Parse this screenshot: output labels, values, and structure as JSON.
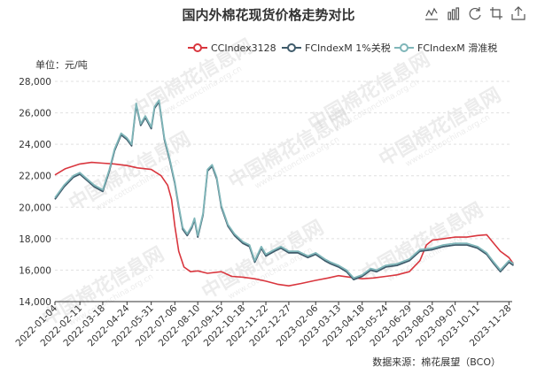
{
  "chart_data": {
    "type": "line",
    "title": "国内外棉花现货价格走势对比",
    "unit_label": "单位：元/吨",
    "source": "数据来源：棉花展望（BCO）",
    "watermark": "中国棉花信息网",
    "watermark_url": "www.cottonchina.org.cn",
    "ylim": [
      14000,
      28000
    ],
    "yticks": [
      14000,
      16000,
      18000,
      20000,
      22000,
      24000,
      26000,
      28000
    ],
    "ytick_labels": [
      "14,000",
      "16,000",
      "18,000",
      "20,000",
      "22,000",
      "24,000",
      "26,000",
      "28,000"
    ],
    "xticks": [
      "2022-01-04",
      "2022-02-11",
      "2022-03-18",
      "2022-04-24",
      "2022-05-31",
      "2022-07-06",
      "2022-08-10",
      "2022-09-15",
      "2022-10-18",
      "2022-11-22",
      "2022-12-27",
      "2023-02-06",
      "2023-03-13",
      "2023-04-18",
      "2023-05-24",
      "2023-06-29",
      "2023-08-03",
      "2023-09-07",
      "2023-10-11",
      "2023-11-28"
    ],
    "grid": true,
    "legend_position": "top-right",
    "series": [
      {
        "name": "CCIndex3128",
        "color": "#d9363e",
        "points": [
          [
            "2022-01-04",
            22050
          ],
          [
            "2022-01-20",
            22450
          ],
          [
            "2022-02-11",
            22750
          ],
          [
            "2022-03-01",
            22850
          ],
          [
            "2022-03-18",
            22800
          ],
          [
            "2022-04-05",
            22750
          ],
          [
            "2022-04-24",
            22650
          ],
          [
            "2022-05-10",
            22500
          ],
          [
            "2022-05-31",
            22400
          ],
          [
            "2022-06-15",
            22000
          ],
          [
            "2022-06-25",
            21400
          ],
          [
            "2022-07-01",
            20500
          ],
          [
            "2022-07-06",
            18800
          ],
          [
            "2022-07-12",
            17200
          ],
          [
            "2022-07-20",
            16200
          ],
          [
            "2022-07-30",
            15900
          ],
          [
            "2022-08-10",
            15950
          ],
          [
            "2022-08-25",
            15800
          ],
          [
            "2022-09-15",
            15900
          ],
          [
            "2022-10-01",
            15600
          ],
          [
            "2022-10-18",
            15550
          ],
          [
            "2022-11-05",
            15450
          ],
          [
            "2022-11-22",
            15300
          ],
          [
            "2022-12-10",
            15100
          ],
          [
            "2022-12-27",
            15000
          ],
          [
            "2023-01-15",
            15150
          ],
          [
            "2023-02-06",
            15350
          ],
          [
            "2023-02-25",
            15500
          ],
          [
            "2023-03-13",
            15650
          ],
          [
            "2023-03-30",
            15550
          ],
          [
            "2023-04-18",
            15450
          ],
          [
            "2023-05-05",
            15500
          ],
          [
            "2023-05-24",
            15600
          ],
          [
            "2023-06-10",
            15700
          ],
          [
            "2023-06-29",
            15900
          ],
          [
            "2023-07-15",
            16600
          ],
          [
            "2023-07-25",
            17600
          ],
          [
            "2023-08-03",
            17900
          ],
          [
            "2023-08-20",
            18000
          ],
          [
            "2023-09-07",
            18100
          ],
          [
            "2023-09-25",
            18100
          ],
          [
            "2023-10-11",
            18200
          ],
          [
            "2023-10-25",
            18250
          ],
          [
            "2023-11-05",
            17700
          ],
          [
            "2023-11-15",
            17200
          ],
          [
            "2023-11-28",
            16800
          ],
          [
            "2023-12-05",
            16400
          ]
        ]
      },
      {
        "name": "FCIndexM 1%关税",
        "color": "#3f5b6b",
        "points": [
          [
            "2022-01-04",
            20500
          ],
          [
            "2022-01-18",
            21300
          ],
          [
            "2022-02-01",
            21900
          ],
          [
            "2022-02-11",
            22100
          ],
          [
            "2022-02-22",
            21700
          ],
          [
            "2022-03-05",
            21300
          ],
          [
            "2022-03-18",
            21000
          ],
          [
            "2022-03-28",
            22300
          ],
          [
            "2022-04-05",
            23600
          ],
          [
            "2022-04-15",
            24600
          ],
          [
            "2022-04-24",
            24300
          ],
          [
            "2022-05-01",
            23900
          ],
          [
            "2022-05-08",
            26500
          ],
          [
            "2022-05-15",
            25200
          ],
          [
            "2022-05-22",
            25700
          ],
          [
            "2022-05-31",
            25000
          ],
          [
            "2022-06-05",
            26300
          ],
          [
            "2022-06-12",
            26700
          ],
          [
            "2022-06-20",
            24300
          ],
          [
            "2022-06-28",
            23000
          ],
          [
            "2022-07-06",
            21500
          ],
          [
            "2022-07-12",
            20000
          ],
          [
            "2022-07-18",
            18600
          ],
          [
            "2022-07-25",
            18200
          ],
          [
            "2022-08-01",
            18700
          ],
          [
            "2022-08-05",
            19200
          ],
          [
            "2022-08-10",
            18100
          ],
          [
            "2022-08-18",
            19500
          ],
          [
            "2022-08-25",
            22300
          ],
          [
            "2022-09-01",
            22600
          ],
          [
            "2022-09-08",
            21800
          ],
          [
            "2022-09-15",
            20000
          ],
          [
            "2022-09-25",
            18800
          ],
          [
            "2022-10-05",
            18200
          ],
          [
            "2022-10-18",
            17700
          ],
          [
            "2022-10-28",
            17500
          ],
          [
            "2022-11-05",
            16500
          ],
          [
            "2022-11-15",
            17400
          ],
          [
            "2022-11-22",
            16900
          ],
          [
            "2022-12-05",
            17200
          ],
          [
            "2022-12-15",
            17400
          ],
          [
            "2022-12-27",
            17100
          ],
          [
            "2023-01-10",
            17100
          ],
          [
            "2023-01-25",
            16800
          ],
          [
            "2023-02-06",
            17000
          ],
          [
            "2023-02-20",
            16600
          ],
          [
            "2023-03-01",
            16400
          ],
          [
            "2023-03-13",
            16200
          ],
          [
            "2023-03-25",
            15900
          ],
          [
            "2023-04-05",
            15400
          ],
          [
            "2023-04-18",
            15600
          ],
          [
            "2023-05-01",
            16000
          ],
          [
            "2023-05-10",
            15900
          ],
          [
            "2023-05-24",
            16200
          ],
          [
            "2023-06-10",
            16300
          ],
          [
            "2023-06-29",
            16600
          ],
          [
            "2023-07-15",
            17200
          ],
          [
            "2023-08-03",
            17300
          ],
          [
            "2023-08-20",
            17500
          ],
          [
            "2023-09-07",
            17600
          ],
          [
            "2023-09-25",
            17600
          ],
          [
            "2023-10-11",
            17400
          ],
          [
            "2023-10-25",
            17000
          ],
          [
            "2023-11-05",
            16400
          ],
          [
            "2023-11-15",
            15900
          ],
          [
            "2023-11-28",
            16500
          ],
          [
            "2023-12-05",
            16300
          ]
        ]
      },
      {
        "name": "FCIndexM 滑准税",
        "color": "#7fb6b9",
        "points": [
          [
            "2022-01-04",
            20600
          ],
          [
            "2022-01-18",
            21400
          ],
          [
            "2022-02-01",
            22000
          ],
          [
            "2022-02-11",
            22200
          ],
          [
            "2022-02-22",
            21800
          ],
          [
            "2022-03-05",
            21400
          ],
          [
            "2022-03-18",
            21100
          ],
          [
            "2022-03-28",
            22400
          ],
          [
            "2022-04-05",
            23700
          ],
          [
            "2022-04-15",
            24700
          ],
          [
            "2022-04-24",
            24400
          ],
          [
            "2022-05-01",
            24000
          ],
          [
            "2022-05-08",
            26600
          ],
          [
            "2022-05-15",
            25300
          ],
          [
            "2022-05-22",
            25800
          ],
          [
            "2022-05-31",
            25100
          ],
          [
            "2022-06-05",
            26400
          ],
          [
            "2022-06-12",
            26800
          ],
          [
            "2022-06-20",
            24400
          ],
          [
            "2022-06-28",
            23100
          ],
          [
            "2022-07-06",
            21600
          ],
          [
            "2022-07-12",
            20100
          ],
          [
            "2022-07-18",
            18700
          ],
          [
            "2022-07-25",
            18300
          ],
          [
            "2022-08-01",
            18800
          ],
          [
            "2022-08-05",
            19300
          ],
          [
            "2022-08-10",
            18200
          ],
          [
            "2022-08-18",
            19600
          ],
          [
            "2022-08-25",
            22400
          ],
          [
            "2022-09-01",
            22700
          ],
          [
            "2022-09-08",
            21900
          ],
          [
            "2022-09-15",
            20100
          ],
          [
            "2022-09-25",
            18900
          ],
          [
            "2022-10-05",
            18300
          ],
          [
            "2022-10-18",
            17800
          ],
          [
            "2022-10-28",
            17600
          ],
          [
            "2022-11-05",
            16600
          ],
          [
            "2022-11-15",
            17500
          ],
          [
            "2022-11-22",
            17000
          ],
          [
            "2022-12-05",
            17300
          ],
          [
            "2022-12-15",
            17500
          ],
          [
            "2022-12-27",
            17200
          ],
          [
            "2023-01-10",
            17200
          ],
          [
            "2023-01-25",
            16900
          ],
          [
            "2023-02-06",
            17100
          ],
          [
            "2023-02-20",
            16700
          ],
          [
            "2023-03-01",
            16500
          ],
          [
            "2023-03-13",
            16300
          ],
          [
            "2023-03-25",
            16000
          ],
          [
            "2023-04-05",
            15500
          ],
          [
            "2023-04-18",
            15700
          ],
          [
            "2023-05-01",
            16100
          ],
          [
            "2023-05-10",
            16000
          ],
          [
            "2023-05-24",
            16300
          ],
          [
            "2023-06-10",
            16400
          ],
          [
            "2023-06-29",
            16700
          ],
          [
            "2023-07-15",
            17300
          ],
          [
            "2023-08-03",
            17400
          ],
          [
            "2023-08-20",
            17600
          ],
          [
            "2023-09-07",
            17700
          ],
          [
            "2023-09-25",
            17700
          ],
          [
            "2023-10-11",
            17500
          ],
          [
            "2023-10-25",
            17100
          ],
          [
            "2023-11-05",
            16500
          ],
          [
            "2023-11-15",
            16000
          ],
          [
            "2023-11-28",
            16600
          ],
          [
            "2023-12-05",
            16400
          ]
        ]
      }
    ]
  },
  "toolbar": {
    "icons": [
      "line-chart-icon",
      "bar-chart-icon",
      "restore-icon",
      "data-zoom-icon",
      "save-image-icon"
    ]
  }
}
